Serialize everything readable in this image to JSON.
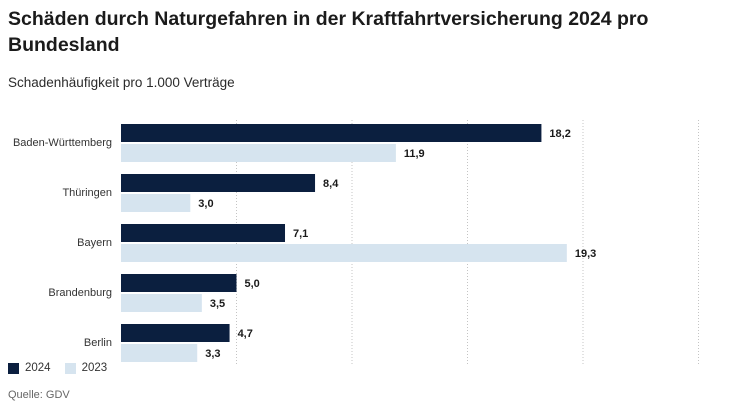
{
  "title": "Schäden durch Naturgefahren in der Kraftfahrtversicherung 2024 pro Bundesland",
  "subtitle": "Schadenhäufigkeit pro 1.000 Verträge",
  "source": "Quelle: GDV",
  "chart_data": {
    "type": "bar",
    "orientation": "horizontal",
    "categories": [
      "Baden-Württemberg",
      "Thüringen",
      "Bayern",
      "Brandenburg",
      "Berlin"
    ],
    "series": [
      {
        "name": "2024",
        "values": [
          18.2,
          8.4,
          7.1,
          5.0,
          4.7
        ],
        "labels": [
          "18,2",
          "8,4",
          "7,1",
          "5,0",
          "4,7"
        ],
        "color": "#0b1f3f"
      },
      {
        "name": "2023",
        "values": [
          11.9,
          3.0,
          19.3,
          3.5,
          3.3
        ],
        "labels": [
          "11,9",
          "3,0",
          "19,3",
          "3,5",
          "3,3"
        ],
        "color": "#d6e4ef"
      }
    ],
    "xlim": [
      0,
      25
    ],
    "gridlines": [
      0,
      5,
      10,
      15,
      20,
      25
    ],
    "grid": "vertical dotted",
    "legend": "bottom-left"
  }
}
